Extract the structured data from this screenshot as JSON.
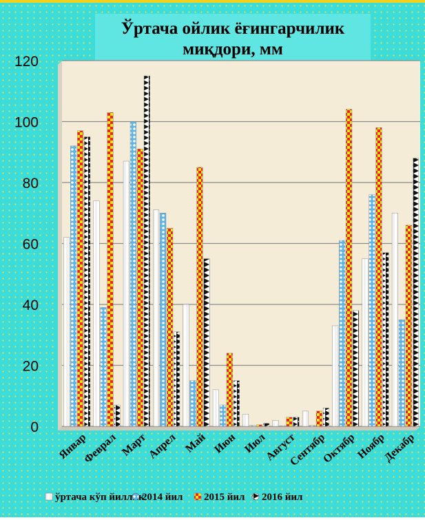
{
  "colors": {
    "frame_bg": "#3cdcd8",
    "plot_bg": "#f5ecd8",
    "series_colors": [
      "#ffffff",
      "#5fb5e6",
      "#e8251a",
      "#111111"
    ],
    "series_accents": [
      "#f0f0f0",
      "#ffffff",
      "#f4e21c",
      "#ffffff"
    ]
  },
  "chart_data": {
    "type": "bar",
    "title_lines": [
      "Ўртача ойлик ёғингарчилик",
      "миқдори, мм"
    ],
    "xlabel": "",
    "ylabel": "",
    "ylim": [
      0,
      120
    ],
    "yticks": [
      "0",
      "20",
      "40",
      "60",
      "80",
      "100",
      "120"
    ],
    "grid": true,
    "legend_position": "bottom",
    "categories": [
      "Январ",
      "Феврал",
      "Март",
      "Апрел",
      "Май",
      "Июн",
      "Июл",
      "Август",
      "Сентябр",
      "Октябр",
      "Ноябр",
      "Декабр"
    ],
    "series": [
      {
        "name": "ўртача кўп йиллик",
        "values": [
          62,
          74,
          87,
          71,
          40,
          12,
          4,
          2,
          5,
          33,
          55,
          70
        ]
      },
      {
        "name": "2014 йил",
        "values": [
          92,
          39,
          100,
          70,
          15,
          7,
          0.3,
          0.2,
          0.3,
          61,
          76,
          35
        ]
      },
      {
        "name": "2015 йил",
        "values": [
          97,
          103,
          91,
          65,
          85,
          24,
          0.5,
          3,
          5,
          104,
          98,
          66
        ]
      },
      {
        "name": "2016 йил",
        "values": [
          95,
          7,
          115,
          31,
          55,
          15,
          1,
          3,
          6,
          38,
          57,
          88
        ]
      }
    ]
  }
}
